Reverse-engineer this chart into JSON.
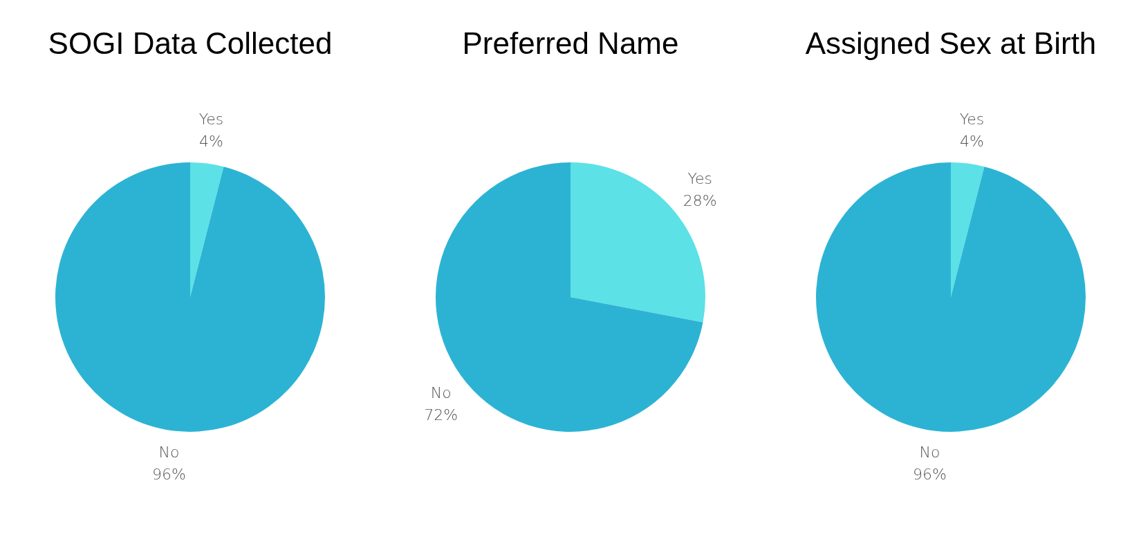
{
  "chart_data": [
    {
      "type": "pie",
      "title": "SOGI Data Collected",
      "categories": [
        "Yes",
        "No"
      ],
      "values": [
        4,
        96
      ],
      "value_labels": [
        "4%",
        "96%"
      ],
      "colors": [
        "#5ce1e6",
        "#2cb3d4"
      ],
      "legend": false
    },
    {
      "type": "pie",
      "title": "Preferred Name",
      "categories": [
        "Yes",
        "No"
      ],
      "values": [
        28,
        72
      ],
      "value_labels": [
        "28%",
        "72%"
      ],
      "colors": [
        "#5ce1e6",
        "#2cb3d4"
      ],
      "legend": false
    },
    {
      "type": "pie",
      "title": "Assigned Sex at Birth",
      "categories": [
        "Yes",
        "No"
      ],
      "values": [
        4,
        96
      ],
      "value_labels": [
        "4%",
        "96%"
      ],
      "colors": [
        "#5ce1e6",
        "#2cb3d4"
      ],
      "legend": false
    }
  ]
}
